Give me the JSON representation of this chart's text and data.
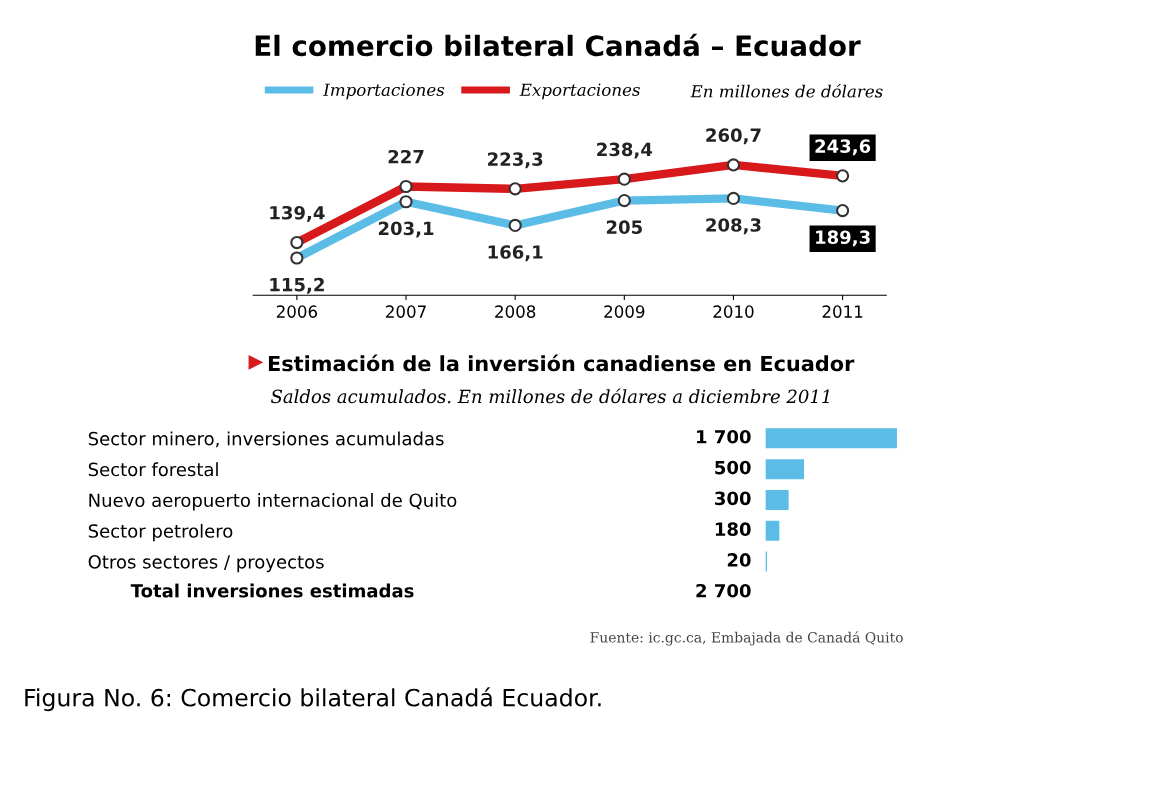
{
  "chart_data": [
    {
      "type": "line",
      "title": "El comercio bilateral Canadá – Ecuador",
      "subtitle": "En millones de dólares",
      "categories": [
        "2006",
        "2007",
        "2008",
        "2009",
        "2010",
        "2011"
      ],
      "series": [
        {
          "name": "Importaciones",
          "color": "#5bbde6",
          "values": [
            115.2,
            203.1,
            166.1,
            205,
            208.3,
            189.3
          ],
          "value_labels": [
            "115,2",
            "203,1",
            "166,1",
            "205",
            "208,3",
            "189,3"
          ]
        },
        {
          "name": "Exportaciones",
          "color": "#d7191c",
          "values": [
            139.4,
            227,
            223.3,
            238.4,
            260.7,
            243.6
          ],
          "value_labels": [
            "139,4",
            "227",
            "223,3",
            "238,4",
            "260,7",
            "243,6"
          ]
        }
      ],
      "marker": "circle",
      "line_style": "solid",
      "grid": false,
      "legend": "top left",
      "tick_labels": "x"
    },
    {
      "type": "bar",
      "orientation": "horizontal",
      "title": "Estimación de la inversión canadiense en Ecuador",
      "subtitle": "Saldos acumulados. En millones de dólares a diciembre 2011",
      "categories": [
        "Sector minero, inversiones acumuladas",
        "Sector forestal",
        "Nuevo aeropuerto internacional de Quito",
        "Sector petrolero",
        "Otros sectores / proyectos"
      ],
      "values": [
        1700,
        500,
        300,
        180,
        20
      ],
      "value_labels": [
        "1 700",
        "500",
        "300",
        "180",
        "20"
      ],
      "color": "#5bbde6",
      "tick_labels": "y",
      "grid": false,
      "annotations": [
        "Total inversiones estimadas",
        "2 700",
        "Fuente: ic.gc.ca, Embajada de Canadá Quito",
        "Figura No. 6: Comercio bilateral Canadá Ecuador."
      ]
    }
  ]
}
